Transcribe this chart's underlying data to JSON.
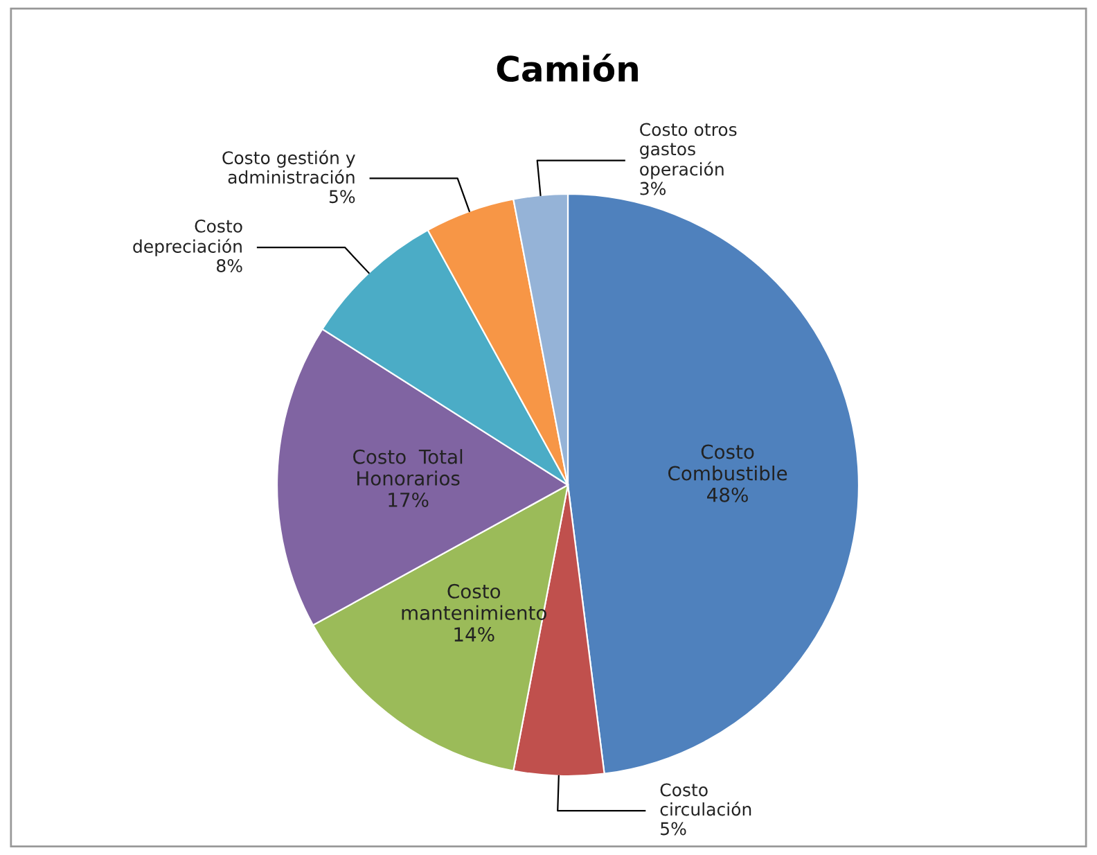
{
  "chart_data": {
    "type": "pie",
    "title": "Camión",
    "categories": [
      "Costo\nCombustible",
      "Costo\ncirculación",
      "Costo\nmantenimiento",
      "Costo  Total\nHonorarios",
      "Costo\ndepreciación",
      "Costo gestión y\nadministración",
      "Costo otros\ngastos\noperación"
    ],
    "values": [
      48,
      5,
      14,
      17,
      8,
      5,
      3
    ],
    "value_labels": [
      "48%",
      "5%",
      "14%",
      "17%",
      "8%",
      "5%",
      "3%"
    ],
    "colors": [
      "#4f81bd",
      "#c0504d",
      "#9bbb59",
      "#8064a2",
      "#4bacc6",
      "#f79646",
      "#95b3d7"
    ],
    "legend": false
  }
}
